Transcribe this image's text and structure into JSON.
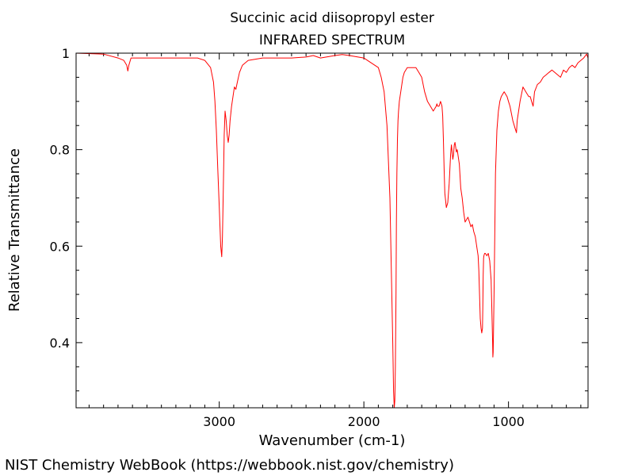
{
  "chart_data": {
    "type": "line",
    "title": "Succinic acid diisopropyl ester",
    "subtitle": "INFRARED SPECTRUM",
    "xlabel": "Wavenumber (cm-1)",
    "ylabel": "Relative Transmittance",
    "xlim": [
      3990,
      450
    ],
    "ylim": [
      0.265,
      1.0
    ],
    "x_reversed": true,
    "grid": false,
    "x_ticks": [
      3000,
      2000,
      1000
    ],
    "x_tick_labels": [
      "3000",
      "2000",
      "1000"
    ],
    "y_ticks": [
      0.4,
      0.6,
      0.8,
      1.0
    ],
    "y_tick_labels": [
      "0.4",
      "0.6",
      "0.8",
      "1"
    ],
    "series": [
      {
        "color": "#ff0000",
        "x": [
          3990,
          3800,
          3700,
          3660,
          3640,
          3632,
          3625,
          3610,
          3560,
          3500,
          3400,
          3300,
          3200,
          3150,
          3100,
          3060,
          3040,
          3030,
          3020,
          3010,
          3000,
          2990,
          2983,
          2978,
          2972,
          2966,
          2960,
          2952,
          2945,
          2938,
          2932,
          2925,
          2915,
          2905,
          2895,
          2885,
          2875,
          2860,
          2840,
          2800,
          2700,
          2600,
          2500,
          2400,
          2350,
          2300,
          2200,
          2150,
          2100,
          2000,
          1950,
          1900,
          1880,
          1860,
          1840,
          1820,
          1810,
          1800,
          1795,
          1790,
          1786,
          1782,
          1778,
          1775,
          1772,
          1768,
          1764,
          1760,
          1755,
          1750,
          1745,
          1740,
          1735,
          1730,
          1720,
          1700,
          1680,
          1660,
          1640,
          1620,
          1600,
          1580,
          1560,
          1540,
          1520,
          1510,
          1500,
          1495,
          1490,
          1480,
          1470,
          1460,
          1455,
          1450,
          1445,
          1440,
          1430,
          1420,
          1410,
          1400,
          1395,
          1390,
          1385,
          1380,
          1375,
          1370,
          1365,
          1360,
          1355,
          1350,
          1340,
          1330,
          1320,
          1310,
          1300,
          1290,
          1280,
          1270,
          1260,
          1250,
          1240,
          1230,
          1220,
          1210,
          1205,
          1200,
          1195,
          1190,
          1185,
          1180,
          1178,
          1175,
          1172,
          1170,
          1165,
          1160,
          1150,
          1140,
          1130,
          1120,
          1115,
          1110,
          1108,
          1106,
          1104,
          1100,
          1095,
          1090,
          1080,
          1070,
          1060,
          1050,
          1040,
          1030,
          1020,
          1010,
          1000,
          990,
          980,
          970,
          960,
          955,
          950,
          945,
          940,
          930,
          920,
          900,
          880,
          860,
          850,
          840,
          830,
          820,
          800,
          780,
          760,
          740,
          720,
          700,
          680,
          660,
          640,
          620,
          600,
          580,
          560,
          540,
          520,
          500,
          480,
          460,
          450
        ],
        "y": [
          1.0,
          0.998,
          0.99,
          0.985,
          0.975,
          0.963,
          0.975,
          0.99,
          0.99,
          0.99,
          0.99,
          0.99,
          0.99,
          0.99,
          0.985,
          0.97,
          0.94,
          0.9,
          0.84,
          0.76,
          0.68,
          0.6,
          0.578,
          0.62,
          0.72,
          0.83,
          0.88,
          0.86,
          0.83,
          0.815,
          0.83,
          0.86,
          0.89,
          0.91,
          0.93,
          0.925,
          0.94,
          0.96,
          0.975,
          0.985,
          0.99,
          0.99,
          0.99,
          0.992,
          0.995,
          0.99,
          0.995,
          0.997,
          0.995,
          0.99,
          0.98,
          0.97,
          0.95,
          0.92,
          0.85,
          0.7,
          0.55,
          0.4,
          0.3,
          0.265,
          0.28,
          0.35,
          0.5,
          0.65,
          0.75,
          0.82,
          0.86,
          0.88,
          0.9,
          0.91,
          0.92,
          0.93,
          0.94,
          0.95,
          0.96,
          0.97,
          0.97,
          0.97,
          0.97,
          0.96,
          0.95,
          0.92,
          0.9,
          0.89,
          0.88,
          0.885,
          0.89,
          0.895,
          0.89,
          0.89,
          0.9,
          0.89,
          0.87,
          0.82,
          0.76,
          0.71,
          0.68,
          0.69,
          0.73,
          0.79,
          0.81,
          0.795,
          0.78,
          0.79,
          0.81,
          0.815,
          0.805,
          0.795,
          0.8,
          0.79,
          0.77,
          0.72,
          0.7,
          0.67,
          0.65,
          0.655,
          0.66,
          0.65,
          0.64,
          0.645,
          0.63,
          0.62,
          0.6,
          0.58,
          0.55,
          0.5,
          0.45,
          0.43,
          0.42,
          0.43,
          0.47,
          0.54,
          0.575,
          0.58,
          0.585,
          0.585,
          0.58,
          0.585,
          0.57,
          0.53,
          0.47,
          0.4,
          0.37,
          0.38,
          0.42,
          0.5,
          0.62,
          0.75,
          0.84,
          0.88,
          0.9,
          0.91,
          0.915,
          0.92,
          0.915,
          0.91,
          0.9,
          0.89,
          0.875,
          0.86,
          0.85,
          0.845,
          0.84,
          0.835,
          0.86,
          0.88,
          0.9,
          0.93,
          0.92,
          0.91,
          0.91,
          0.9,
          0.89,
          0.92,
          0.935,
          0.94,
          0.95,
          0.955,
          0.96,
          0.965,
          0.96,
          0.955,
          0.95,
          0.965,
          0.96,
          0.97,
          0.975,
          0.97,
          0.98,
          0.985,
          0.99,
          0.998,
          0.99
        ]
      }
    ]
  },
  "footer": "NIST Chemistry WebBook (https://webbook.nist.gov/chemistry)"
}
